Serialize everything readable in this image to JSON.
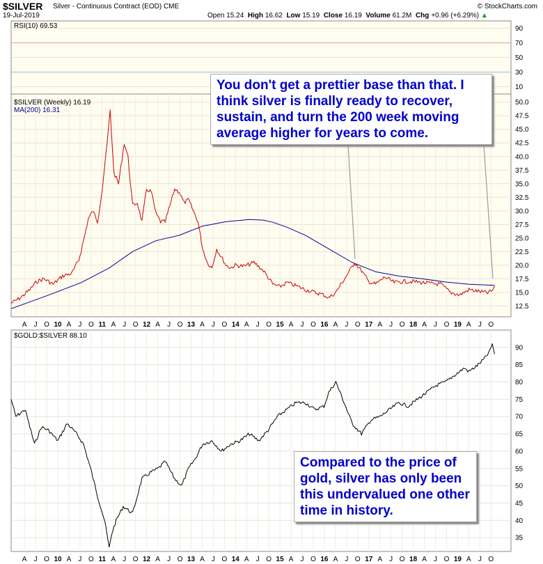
{
  "header": {
    "symbol": "$SILVER",
    "description": "Silver - Continuous Contract (EOD)",
    "exchange": "CME",
    "date": "19-Jul-2019",
    "brand": "© StockCharts.com",
    "open_label": "Open",
    "open": "15.24",
    "high_label": "High",
    "high": "16.62",
    "low_label": "Low",
    "low": "15.19",
    "close_label": "Close",
    "close": "16.19",
    "volume_label": "Volume",
    "volume": "61.2M",
    "chg_label": "Chg",
    "chg": "+0.96 (+6.29%)"
  },
  "annotations": {
    "note1": "You don't get a prettier base than that. I think silver is finally ready to recover, sustain, and turn the 200 week moving average higher for years to come.",
    "note2": "Compared to the price of gold, silver has only been this undervalued one other time in history."
  },
  "colors": {
    "price": "#cc0000",
    "ma": "#000099",
    "ratio": "#000000",
    "note_text": "#0000cc",
    "panel_bg": "#fffdf0"
  },
  "chart_data": [
    {
      "type": "line",
      "panel": "rsi",
      "legend": "RSI(10) 69.53",
      "y_ticks": [
        10,
        30,
        50,
        70,
        90
      ],
      "ylim": [
        0,
        100
      ]
    },
    {
      "type": "line",
      "panel": "price",
      "legend": [
        "$SILVER (Weekly) 16.19",
        "MA(200) 16.31"
      ],
      "x_ticks": [
        "A",
        "J",
        "O",
        "10",
        "A",
        "J",
        "O",
        "11",
        "A",
        "J",
        "O",
        "12",
        "A",
        "J",
        "O",
        "13",
        "A",
        "J",
        "O",
        "14",
        "A",
        "J",
        "O",
        "15",
        "A",
        "J",
        "O",
        "16",
        "A",
        "J",
        "O",
        "17",
        "A",
        "J",
        "O",
        "18",
        "A",
        "J",
        "O",
        "19",
        "A",
        "J",
        "O"
      ],
      "y_ticks": [
        12.5,
        15.0,
        17.5,
        20.0,
        22.5,
        25.0,
        27.5,
        30.0,
        32.5,
        35.0,
        37.5,
        40.0,
        42.5,
        45.0,
        47.5,
        50.0
      ],
      "ylim": [
        10.5,
        51.5
      ],
      "x_range": [
        2009.2,
        2019.9
      ],
      "series": [
        {
          "name": "$SILVER (Weekly)",
          "x": [
            2009.2,
            2009.4,
            2009.6,
            2009.75,
            2009.9,
            2010.1,
            2010.3,
            2010.5,
            2010.65,
            2010.75,
            2010.85,
            2010.95,
            2011.05,
            2011.15,
            2011.25,
            2011.32,
            2011.4,
            2011.5,
            2011.62,
            2011.7,
            2011.8,
            2011.9,
            2012.0,
            2012.1,
            2012.2,
            2012.3,
            2012.4,
            2012.5,
            2012.6,
            2012.7,
            2012.8,
            2012.9,
            2013.0,
            2013.1,
            2013.2,
            2013.3,
            2013.4,
            2013.5,
            2013.6,
            2013.7,
            2013.8,
            2013.9,
            2014.0,
            2014.2,
            2014.4,
            2014.6,
            2014.8,
            2014.95,
            2015.1,
            2015.3,
            2015.5,
            2015.7,
            2015.9,
            2016.0,
            2016.15,
            2016.3,
            2016.45,
            2016.55,
            2016.7,
            2016.85,
            2017.0,
            2017.2,
            2017.4,
            2017.6,
            2017.8,
            2018.0,
            2018.2,
            2018.4,
            2018.6,
            2018.8,
            2019.0,
            2019.2,
            2019.4,
            2019.5,
            2019.55
          ],
          "values": [
            13.0,
            14.0,
            15.5,
            17.0,
            17.5,
            16.5,
            18.0,
            18.5,
            21.0,
            24.5,
            28.5,
            30.0,
            28.0,
            34.0,
            42.0,
            48.5,
            37.0,
            35.0,
            42.5,
            40.0,
            31.0,
            31.5,
            28.0,
            34.0,
            33.5,
            29.5,
            28.0,
            28.0,
            31.0,
            34.0,
            33.5,
            31.5,
            32.0,
            30.0,
            28.0,
            23.0,
            20.5,
            19.5,
            23.0,
            21.5,
            20.0,
            19.5,
            20.0,
            19.8,
            20.5,
            19.0,
            16.5,
            16.0,
            16.8,
            16.2,
            15.5,
            15.0,
            14.5,
            14.0,
            15.0,
            17.0,
            19.0,
            20.5,
            19.0,
            17.0,
            16.5,
            17.8,
            16.8,
            17.0,
            17.0,
            16.8,
            16.6,
            16.5,
            15.0,
            14.5,
            15.5,
            15.2,
            14.9,
            15.3,
            16.2
          ]
        },
        {
          "name": "MA(200)",
          "x": [
            2009.2,
            2010.0,
            2010.7,
            2011.3,
            2011.8,
            2012.3,
            2012.8,
            2013.3,
            2013.8,
            2014.3,
            2014.6,
            2014.8,
            2015.1,
            2015.5,
            2016.0,
            2016.5,
            2017.0,
            2017.5,
            2018.0,
            2018.5,
            2019.0,
            2019.55
          ],
          "values": [
            12.0,
            14.5,
            16.8,
            19.5,
            22.5,
            24.5,
            25.5,
            27.2,
            28.0,
            28.4,
            28.3,
            27.9,
            27.0,
            25.5,
            23.0,
            20.5,
            18.8,
            18.0,
            17.5,
            16.9,
            16.5,
            16.3
          ]
        }
      ]
    },
    {
      "type": "line",
      "panel": "ratio",
      "legend": "$GOLD:$SILVER 88.10",
      "x_ticks": [
        "A",
        "J",
        "O",
        "10",
        "A",
        "J",
        "O",
        "11",
        "A",
        "J",
        "O",
        "12",
        "A",
        "J",
        "O",
        "13",
        "A",
        "J",
        "O",
        "14",
        "A",
        "J",
        "O",
        "15",
        "A",
        "J",
        "O",
        "16",
        "A",
        "J",
        "O",
        "17",
        "A",
        "J",
        "O",
        "18",
        "A",
        "J",
        "O",
        "19",
        "A",
        "J",
        "O"
      ],
      "y_ticks": [
        35,
        40,
        45,
        50,
        55,
        60,
        65,
        70,
        75,
        80,
        85,
        90
      ],
      "ylim": [
        31,
        95
      ],
      "x_range": [
        2009.2,
        2019.9
      ],
      "series": [
        {
          "name": "$GOLD:$SILVER",
          "x": [
            2009.2,
            2009.3,
            2009.5,
            2009.7,
            2009.85,
            2010.0,
            2010.2,
            2010.4,
            2010.6,
            2010.75,
            2010.9,
            2011.05,
            2011.2,
            2011.3,
            2011.35,
            2011.45,
            2011.6,
            2011.8,
            2012.0,
            2012.2,
            2012.35,
            2012.5,
            2012.7,
            2012.85,
            2013.0,
            2013.15,
            2013.3,
            2013.5,
            2013.7,
            2013.9,
            2014.1,
            2014.3,
            2014.5,
            2014.7,
            2014.9,
            2015.1,
            2015.3,
            2015.5,
            2015.7,
            2015.9,
            2016.0,
            2016.15,
            2016.3,
            2016.5,
            2016.7,
            2016.9,
            2017.1,
            2017.3,
            2017.5,
            2017.7,
            2017.9,
            2018.1,
            2018.3,
            2018.5,
            2018.7,
            2018.9,
            2019.0,
            2019.2,
            2019.35,
            2019.45,
            2019.5,
            2019.55
          ],
          "values": [
            75,
            70,
            72,
            62,
            67,
            66,
            63,
            68,
            65,
            62,
            55,
            47,
            40,
            32,
            36,
            40,
            44,
            42,
            52,
            54,
            55,
            57,
            52,
            50,
            55,
            58,
            62,
            63,
            60,
            62,
            63,
            65,
            63,
            66,
            70,
            72,
            74,
            74,
            72,
            73,
            77,
            80,
            75,
            68,
            65,
            69,
            70,
            72,
            74,
            73,
            75,
            77,
            79,
            80,
            82,
            84,
            83,
            85,
            87,
            89,
            91,
            88
          ]
        }
      ]
    }
  ]
}
